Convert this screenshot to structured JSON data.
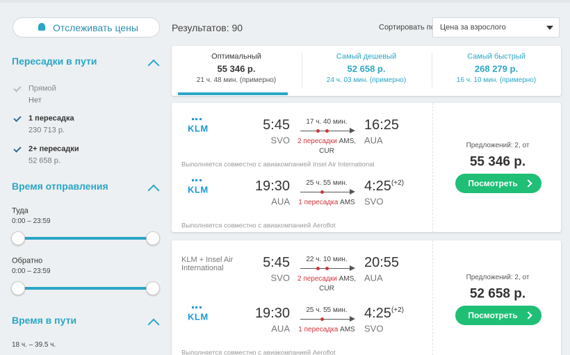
{
  "sidebar": {
    "track_button": "Отслеживать цены",
    "stops": {
      "title": "Пересадки в пути",
      "options": [
        {
          "label": "Прямой",
          "price": "Нет",
          "checked": false,
          "disabled": true
        },
        {
          "label": "1 пересадка",
          "price": "230 713 р.",
          "checked": true,
          "disabled": false
        },
        {
          "label": "2+ пересадки",
          "price": "52 658 р.",
          "checked": true,
          "disabled": false
        }
      ]
    },
    "departure": {
      "title": "Время отправления",
      "groups": [
        {
          "label": "Туда",
          "range": "0:00 – 23:59"
        },
        {
          "label": "Обратно",
          "range": "0:00 – 23:59"
        }
      ]
    },
    "duration": {
      "title": "Время в пути",
      "range": "18 ч. – 39.5 ч."
    }
  },
  "results": {
    "count": "Результатов: 90",
    "sort_label": "Сортировать по",
    "sort_value": "Цена за взрослого"
  },
  "tabs": [
    {
      "title": "Оптимальный",
      "price": "55 346 р.",
      "duration": "21 ч. 48 мин. (примерно)"
    },
    {
      "title": "Самый дешевый",
      "price": "52 658 р.",
      "duration": "24 ч. 03 мин. (примерно)"
    },
    {
      "title": "Самый быстрый",
      "price": "268 279 р.",
      "duration": "16 ч. 10 мин. (примерно)"
    }
  ],
  "tickets": [
    {
      "segments": [
        {
          "airline_logo": "KLM",
          "dep_time": "5:45",
          "dep_airport": "SVO",
          "duration": "17 ч. 40 мин.",
          "stops": "2 пересадки",
          "via": "AMS, CUR",
          "arr_time": "16:25",
          "arr_airport": "AUA",
          "note": "Выполняется совместно с авиакомпанией Insel Air International"
        },
        {
          "airline_logo": "KLM",
          "dep_time": "19:30",
          "dep_airport": "AUA",
          "duration": "25 ч. 55 мин.",
          "stops": "1 пересадка",
          "via": "AMS",
          "arr_time": "4:25",
          "arr_shift": "(+2)",
          "arr_airport": "SVO",
          "note": "Выполняется совместно с авиакомпанией Aeroflot"
        }
      ],
      "offers": "Предложений: 2, от",
      "price": "55 346 р.",
      "button": "Посмотреть"
    },
    {
      "segments": [
        {
          "airline_text": "KLM + Insel Air International",
          "dep_time": "5:45",
          "dep_airport": "SVO",
          "duration": "22 ч. 10 мин.",
          "stops": "2 пересадки",
          "via": "AMS, CUR",
          "arr_time": "20:55",
          "arr_airport": "AUA"
        },
        {
          "airline_logo": "KLM",
          "dep_time": "19:30",
          "dep_airport": "AUA",
          "duration": "25 ч. 55 мин.",
          "stops": "1 пересадка",
          "via": "AMS",
          "arr_time": "4:25",
          "arr_shift": "(+2)",
          "arr_airport": "SVO",
          "note": "Выполняется совместно с авиакомпанией Aeroflot"
        }
      ],
      "offers": "Предложений: 2, от",
      "price": "52 658 р.",
      "button": "Посмотреть"
    }
  ]
}
